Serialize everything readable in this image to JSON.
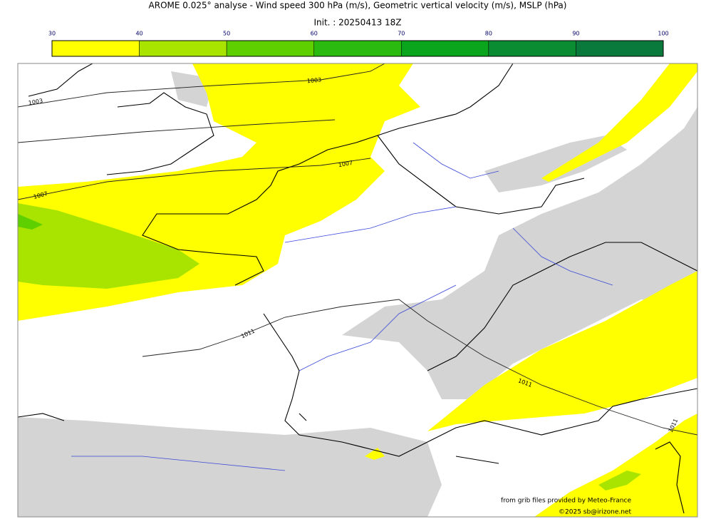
{
  "header": {
    "title": "AROME 0.025° analyse - Wind speed 300 hPa (m/s), Geometric vertical velocity (m/s), MSLP (hPa)",
    "subtitle": "Init. : 20250413 18Z"
  },
  "colorbar": {
    "ticks": [
      30,
      40,
      50,
      60,
      70,
      80,
      90,
      100
    ],
    "colors": [
      "#ffff00",
      "#a8e400",
      "#5ed000",
      "#2bbb10",
      "#0aa51c",
      "#0a8d32",
      "#0a7a3c"
    ]
  },
  "map": {
    "isobar_labels": [
      "1003",
      "1003",
      "1007",
      "1007",
      "1011",
      "1011",
      "1011"
    ],
    "credits": [
      "from grib files provided by Meteo-France",
      "©2025 sb@irizone.net"
    ]
  }
}
